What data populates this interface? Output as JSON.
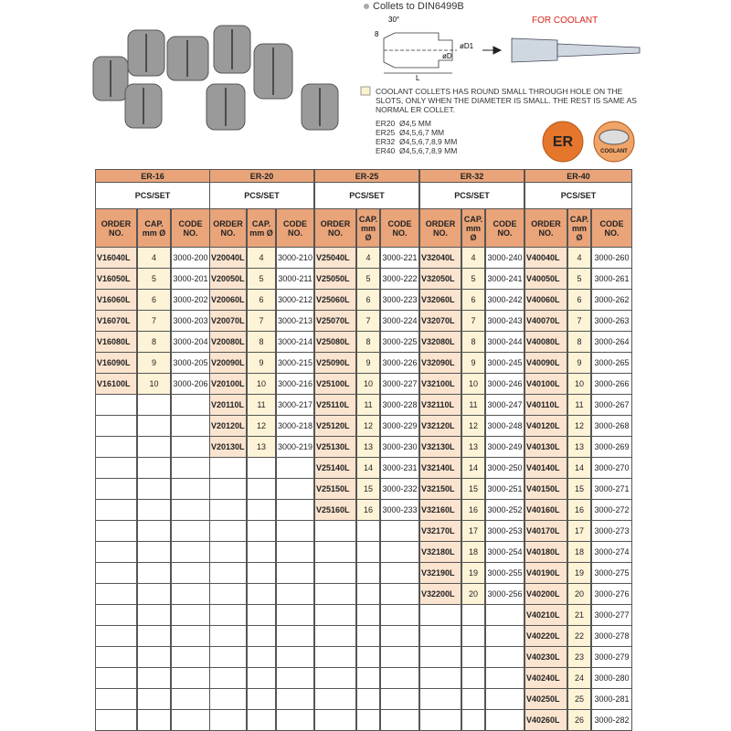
{
  "header": {
    "title": "Collets to DIN6499B",
    "coolant_label": "FOR COOLANT"
  },
  "diagram": {
    "angle": "30°",
    "slot": "8",
    "d": "øD",
    "d1": "øD1",
    "length": "L"
  },
  "note": {
    "text": "COOLANT COLLETS HAS ROUND SMALL THROUGH HOLE ON THE SLOTS, ONLY WHEN THE DIAMETER IS SMALL. THE REST IS SAME AS NORMAL ER COLLET.",
    "sizes": [
      "ER20  Ø4,5 MM",
      "ER25  Ø4,5,6,7 MM",
      "ER32  Ø4,5,6,7,8,9 MM",
      "ER40  Ø4,5,6,7,8,9 MM"
    ]
  },
  "icons": [
    "ER",
    "COOLANT"
  ],
  "table": {
    "groups": [
      {
        "name": "ER-16",
        "unit": "PCS/SET",
        "columns": [
          "ORDER NO.",
          "CAP. mm Ø",
          "CODE NO."
        ],
        "rows": [
          [
            "V16040L",
            4,
            "3000-200"
          ],
          [
            "V16050L",
            5,
            "3000-201"
          ],
          [
            "V16060L",
            6,
            "3000-202"
          ],
          [
            "V16070L",
            7,
            "3000-203"
          ],
          [
            "V16080L",
            8,
            "3000-204"
          ],
          [
            "V16090L",
            9,
            "3000-205"
          ],
          [
            "V16100L",
            10,
            "3000-206"
          ]
        ]
      },
      {
        "name": "ER-20",
        "unit": "PCS/SET",
        "columns": [
          "ORDER NO.",
          "CAP. mm Ø",
          "CODE NO."
        ],
        "rows": [
          [
            "V20040L",
            4,
            "3000-210"
          ],
          [
            "V20050L",
            5,
            "3000-211"
          ],
          [
            "V20060L",
            6,
            "3000-212"
          ],
          [
            "V20070L",
            7,
            "3000-213"
          ],
          [
            "V20080L",
            8,
            "3000-214"
          ],
          [
            "V20090L",
            9,
            "3000-215"
          ],
          [
            "V20100L",
            10,
            "3000-216"
          ],
          [
            "V20110L",
            11,
            "3000-217"
          ],
          [
            "V20120L",
            12,
            "3000-218"
          ],
          [
            "V20130L",
            13,
            "3000-219"
          ]
        ]
      },
      {
        "name": "ER-25",
        "unit": "PCS/SET",
        "columns": [
          "ORDER NO.",
          "CAP. mm Ø",
          "CODE NO."
        ],
        "rows": [
          [
            "V25040L",
            4,
            "3000-221"
          ],
          [
            "V25050L",
            5,
            "3000-222"
          ],
          [
            "V25060L",
            6,
            "3000-223"
          ],
          [
            "V25070L",
            7,
            "3000-224"
          ],
          [
            "V25080L",
            8,
            "3000-225"
          ],
          [
            "V25090L",
            9,
            "3000-226"
          ],
          [
            "V25100L",
            10,
            "3000-227"
          ],
          [
            "V25110L",
            11,
            "3000-228"
          ],
          [
            "V25120L",
            12,
            "3000-229"
          ],
          [
            "V25130L",
            13,
            "3000-230"
          ],
          [
            "V25140L",
            14,
            "3000-231"
          ],
          [
            "V25150L",
            15,
            "3000-232"
          ],
          [
            "V25160L",
            16,
            "3000-233"
          ]
        ]
      },
      {
        "name": "ER-32",
        "unit": "PCS/SET",
        "columns": [
          "ORDER NO.",
          "CAP. mm Ø",
          "CODE NO."
        ],
        "rows": [
          [
            "V32040L",
            4,
            "3000-240"
          ],
          [
            "V32050L",
            5,
            "3000-241"
          ],
          [
            "V32060L",
            6,
            "3000-242"
          ],
          [
            "V32070L",
            7,
            "3000-243"
          ],
          [
            "V32080L",
            8,
            "3000-244"
          ],
          [
            "V32090L",
            9,
            "3000-245"
          ],
          [
            "V32100L",
            10,
            "3000-246"
          ],
          [
            "V32110L",
            11,
            "3000-247"
          ],
          [
            "V32120L",
            12,
            "3000-248"
          ],
          [
            "V32130L",
            13,
            "3000-249"
          ],
          [
            "V32140L",
            14,
            "3000-250"
          ],
          [
            "V32150L",
            15,
            "3000-251"
          ],
          [
            "V32160L",
            16,
            "3000-252"
          ],
          [
            "V32170L",
            17,
            "3000-253"
          ],
          [
            "V32180L",
            18,
            "3000-254"
          ],
          [
            "V32190L",
            19,
            "3000-255"
          ],
          [
            "V32200L",
            20,
            "3000-256"
          ]
        ]
      },
      {
        "name": "ER-40",
        "unit": "PCS/SET",
        "columns": [
          "ORDER NO.",
          "CAP. mm Ø",
          "CODE NO."
        ],
        "rows": [
          [
            "V40040L",
            4,
            "3000-260"
          ],
          [
            "V40050L",
            5,
            "3000-261"
          ],
          [
            "V40060L",
            6,
            "3000-262"
          ],
          [
            "V40070L",
            7,
            "3000-263"
          ],
          [
            "V40080L",
            8,
            "3000-264"
          ],
          [
            "V40090L",
            9,
            "3000-265"
          ],
          [
            "V40100L",
            10,
            "3000-266"
          ],
          [
            "V40110L",
            11,
            "3000-267"
          ],
          [
            "V40120L",
            12,
            "3000-268"
          ],
          [
            "V40130L",
            13,
            "3000-269"
          ],
          [
            "V40140L",
            14,
            "3000-270"
          ],
          [
            "V40150L",
            15,
            "3000-271"
          ],
          [
            "V40160L",
            16,
            "3000-272"
          ],
          [
            "V40170L",
            17,
            "3000-273"
          ],
          [
            "V40180L",
            18,
            "3000-274"
          ],
          [
            "V40190L",
            19,
            "3000-275"
          ],
          [
            "V40200L",
            20,
            "3000-276"
          ],
          [
            "V40210L",
            21,
            "3000-277"
          ],
          [
            "V40220L",
            22,
            "3000-278"
          ],
          [
            "V40230L",
            23,
            "3000-279"
          ],
          [
            "V40240L",
            24,
            "3000-280"
          ],
          [
            "V40250L",
            25,
            "3000-281"
          ],
          [
            "V40260L",
            26,
            "3000-282"
          ]
        ]
      }
    ]
  }
}
